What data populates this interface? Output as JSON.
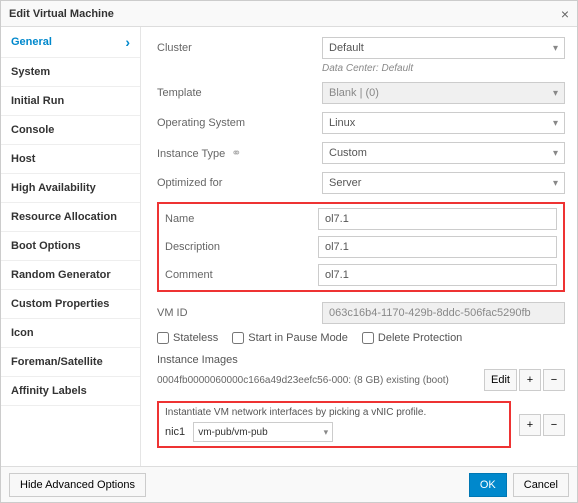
{
  "dialog": {
    "title": "Edit Virtual Machine"
  },
  "sidebar": {
    "items": [
      {
        "label": "General",
        "active": true
      },
      {
        "label": "System"
      },
      {
        "label": "Initial Run"
      },
      {
        "label": "Console"
      },
      {
        "label": "Host"
      },
      {
        "label": "High Availability"
      },
      {
        "label": "Resource Allocation"
      },
      {
        "label": "Boot Options"
      },
      {
        "label": "Random Generator"
      },
      {
        "label": "Custom Properties"
      },
      {
        "label": "Icon"
      },
      {
        "label": "Foreman/Satellite"
      },
      {
        "label": "Affinity Labels"
      }
    ]
  },
  "form": {
    "cluster_label": "Cluster",
    "cluster_value": "Default",
    "datacenter_text": "Data Center: Default",
    "template_label": "Template",
    "template_value": "Blank | (0)",
    "os_label": "Operating System",
    "os_value": "Linux",
    "instancetype_label": "Instance Type",
    "instancetype_value": "Custom",
    "optimized_label": "Optimized for",
    "optimized_value": "Server",
    "name_label": "Name",
    "name_value": "ol7.1",
    "desc_label": "Description",
    "desc_value": "ol7.1",
    "comment_label": "Comment",
    "comment_value": "ol7.1",
    "vmid_label": "VM ID",
    "vmid_value": "063c16b4-1170-429b-8ddc-506fac5290fb",
    "stateless_label": "Stateless",
    "startpause_label": "Start in Pause Mode",
    "deleteprotect_label": "Delete Protection",
    "images_label": "Instance Images",
    "images_text": "0004fb0000060000c166a49d23eefc56-000: (8 GB) existing (boot)",
    "edit_btn": "Edit",
    "vnic_text": "Instantiate VM network interfaces by picking a vNIC profile.",
    "nic_label": "nic1",
    "nic_value": "vm-pub/vm-pub"
  },
  "footer": {
    "hide_adv": "Hide Advanced Options",
    "ok": "OK",
    "cancel": "Cancel"
  },
  "colors": {
    "accent": "#0088cc",
    "highlight_border": "#e33",
    "border": "#ccc"
  }
}
